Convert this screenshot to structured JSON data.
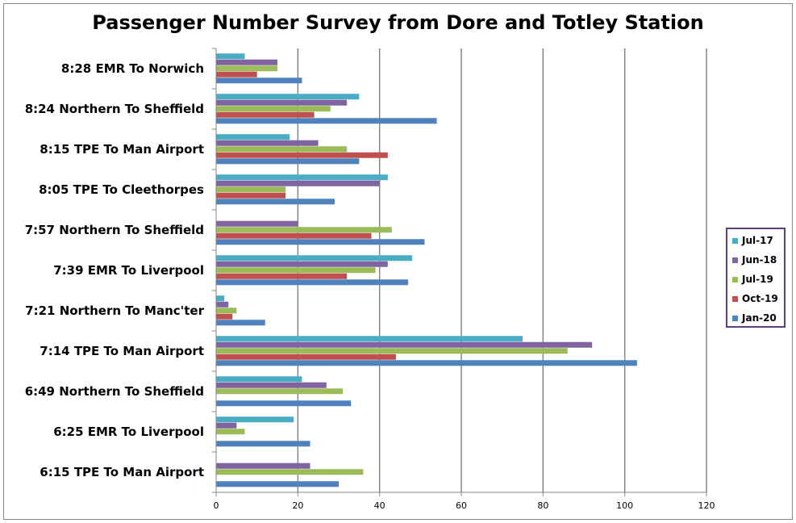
{
  "chart_data": {
    "type": "bar",
    "orientation": "horizontal",
    "title": "Passenger Number Survey from Dore and Totley Station",
    "xlabel": "",
    "ylabel": "",
    "xlim": [
      0,
      120
    ],
    "xticks": [
      "0",
      "20",
      "40",
      "60",
      "80",
      "100",
      "120"
    ],
    "grid": true,
    "legend_position": "right",
    "categories": [
      "8:28 EMR To Norwich",
      "8:24 Northern To Sheffield",
      "8:15 TPE To Man Airport",
      "8:05 TPE To Cleethorpes",
      "7:57 Northern To Sheffield",
      "7:39 EMR To Liverpool",
      "7:21 Northern To Manc'ter",
      "7:14 TPE To Man Airport",
      "6:49 Northern To Sheffield",
      "6:25 EMR To Liverpool",
      "6:15 TPE To Man Airport"
    ],
    "series": [
      {
        "name": "Jul-17",
        "color": "#4bacc6",
        "values": [
          7,
          35,
          18,
          42,
          0,
          48,
          2,
          75,
          21,
          19,
          0
        ]
      },
      {
        "name": "Jun-18",
        "color": "#8064a2",
        "values": [
          15,
          32,
          25,
          40,
          20,
          42,
          3,
          92,
          27,
          5,
          23
        ]
      },
      {
        "name": "Jul-19",
        "color": "#9bbb59",
        "values": [
          15,
          28,
          32,
          17,
          43,
          39,
          5,
          86,
          31,
          7,
          36
        ]
      },
      {
        "name": "Oct-19",
        "color": "#c0504d",
        "values": [
          10,
          24,
          42,
          17,
          38,
          32,
          4,
          44,
          0,
          0,
          0
        ]
      },
      {
        "name": "Jan-20",
        "color": "#4f81bd",
        "values": [
          21,
          54,
          35,
          29,
          51,
          47,
          12,
          103,
          33,
          23,
          30
        ]
      }
    ]
  }
}
